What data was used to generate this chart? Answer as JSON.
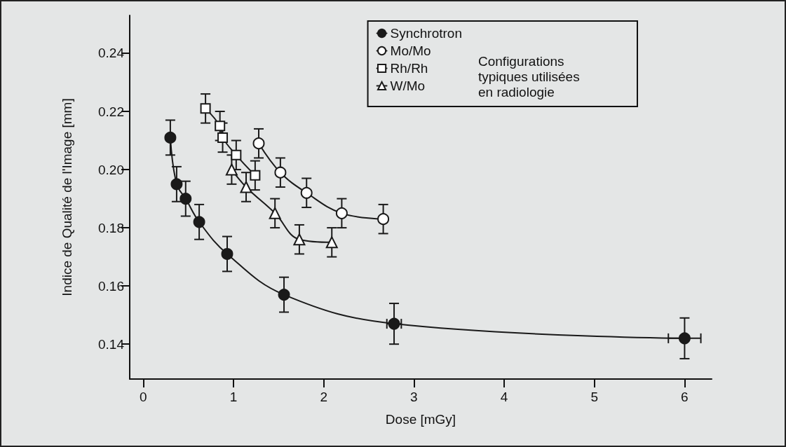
{
  "chart_data": {
    "type": "line",
    "xlabel": "Dose [mGy]",
    "ylabel": "Indice de Qualité de l'Image [mm]",
    "xlim": [
      -0.15,
      6.3
    ],
    "xticks": [
      0,
      1,
      2,
      3,
      4,
      5,
      6
    ],
    "ylim": [
      0.128,
      0.253
    ],
    "yticks": [
      0.14,
      0.16,
      0.18,
      {
        "value": 0.2,
        "label": "0.20"
      },
      0.22,
      0.24
    ],
    "grid": false,
    "legend": "top right",
    "line_style": "solid",
    "annotations": [
      "Configurations\ntypiques utilisées\nen radiologie"
    ],
    "series": [
      {
        "name": "Synchrotron",
        "color": "#1a1a1a",
        "marker": "circle",
        "x": [
          0.3,
          0.37,
          0.47,
          0.62,
          0.93,
          1.56,
          2.78,
          6.0
        ],
        "values": [
          0.211,
          0.195,
          0.19,
          0.182,
          0.171,
          0.157,
          0.147,
          0.142
        ],
        "errors": [
          0.006,
          0.006,
          0.006,
          0.006,
          0.006,
          0.006,
          0.007,
          0.007
        ],
        "xerrors": [
          null,
          null,
          null,
          null,
          null,
          null,
          0.08,
          0.18
        ]
      },
      {
        "name": "Mo/Mo",
        "color": "#1a1a1a",
        "marker": "circle",
        "x": [
          1.28,
          1.52,
          1.81,
          2.2,
          2.66
        ],
        "values": [
          0.209,
          0.199,
          0.192,
          0.185,
          0.183
        ],
        "errors": [
          0.005,
          0.005,
          0.005,
          0.005,
          0.005
        ]
      },
      {
        "name": "Rh/Rh",
        "color": "#1a1a1a",
        "marker": "square",
        "x": [
          0.69,
          0.85,
          0.88,
          1.03,
          1.24
        ],
        "values": [
          0.221,
          0.215,
          0.211,
          0.205,
          0.198
        ],
        "errors": [
          0.005,
          0.005,
          0.005,
          0.005,
          0.005
        ]
      },
      {
        "name": "W/Mo",
        "color": "#1a1a1a",
        "marker": "triangle",
        "x": [
          0.98,
          1.14,
          1.46,
          1.73,
          2.09
        ],
        "values": [
          0.2,
          0.194,
          0.185,
          0.176,
          0.175
        ],
        "errors": [
          0.005,
          0.005,
          0.005,
          0.005,
          0.005
        ]
      }
    ]
  }
}
